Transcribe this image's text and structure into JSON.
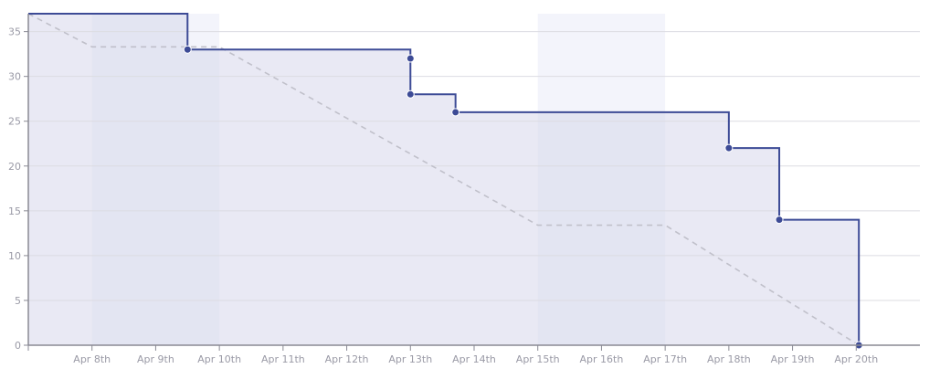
{
  "chart_data": {
    "type": "line",
    "title": "",
    "xlabel": "",
    "ylabel": "",
    "x_domain": [
      "2024-04-07",
      "2024-04-20"
    ],
    "ylim": [
      0,
      37
    ],
    "y_ticks": [
      0,
      5,
      10,
      15,
      20,
      25,
      30,
      35
    ],
    "x_ticks": [
      {
        "date": "2024-04-08",
        "label": "Apr 8th"
      },
      {
        "date": "2024-04-09",
        "label": "Apr 9th"
      },
      {
        "date": "2024-04-10",
        "label": "Apr 10th"
      },
      {
        "date": "2024-04-11",
        "label": "Apr 11th"
      },
      {
        "date": "2024-04-12",
        "label": "Apr 12th"
      },
      {
        "date": "2024-04-13",
        "label": "Apr 13th"
      },
      {
        "date": "2024-04-14",
        "label": "Apr 14th"
      },
      {
        "date": "2024-04-15",
        "label": "Apr 15th"
      },
      {
        "date": "2024-04-16",
        "label": "Apr 16th"
      },
      {
        "date": "2024-04-17",
        "label": "Apr 17th"
      },
      {
        "date": "2024-04-18",
        "label": "Apr 18th"
      },
      {
        "date": "2024-04-19",
        "label": "Apr 19th"
      },
      {
        "date": "2024-04-20",
        "label": "Apr 20th"
      }
    ],
    "weekends": [
      [
        "2024-04-08",
        "2024-04-10"
      ],
      [
        "2024-04-15",
        "2024-04-17"
      ]
    ],
    "series": [
      {
        "style": "step",
        "values": [
          {
            "x": "2024-04-07T00:00",
            "y": 37
          },
          {
            "x": "2024-04-09T12:00",
            "y": 33
          },
          {
            "x": "2024-04-13T00:00",
            "y": 32
          },
          {
            "x": "2024-04-13T00:00",
            "y": 28
          },
          {
            "x": "2024-04-13T17:00",
            "y": 26
          },
          {
            "x": "2024-04-18T00:00",
            "y": 22
          },
          {
            "x": "2024-04-18T19:00",
            "y": 14
          },
          {
            "x": "2024-04-20T01:00",
            "y": 0
          }
        ]
      },
      {
        "style": "dashed",
        "values": [
          {
            "x": "2024-04-07T00:00",
            "y": 37
          },
          {
            "x": "2024-04-08T00:00",
            "y": 33.3
          },
          {
            "x": "2024-04-10T00:00",
            "y": 33.3
          },
          {
            "x": "2024-04-15T00:00",
            "y": 13.4
          },
          {
            "x": "2024-04-17T00:00",
            "y": 13.4
          },
          {
            "x": "2024-04-20T01:00",
            "y": 0
          }
        ]
      }
    ],
    "grid": true,
    "colors": {
      "actual_line": "#3d4b96",
      "actual_area": "#e9e9f4",
      "ideal_line": "#c0c0ca",
      "weekend_band": "#e3e5f2",
      "weekend_band_above": "#f3f4fb",
      "grid": "#dcdce2",
      "axis": "#8a8a94",
      "tick_text": "#9a9aa6"
    }
  }
}
